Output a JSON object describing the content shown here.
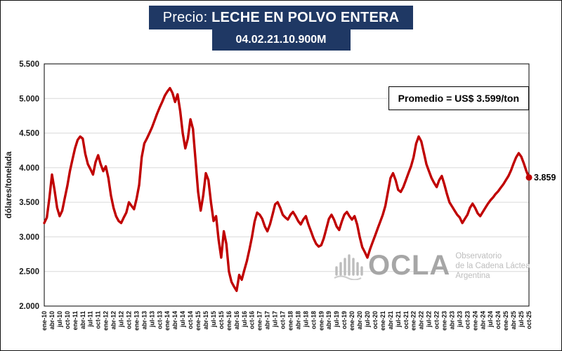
{
  "header": {
    "title_prefix": "Precio: ",
    "title_main": "LECHE EN POLVO ENTERA",
    "subtitle": "04.02.21.10.900M",
    "bg_color": "#1F3864"
  },
  "annotation": {
    "text": "Promedio = US$ 3.599/ton"
  },
  "end_label": "3.859",
  "watermark": {
    "brand": "OCLA",
    "lines": [
      "Observatorio",
      "de la Cadena Láctea",
      "Argentina"
    ]
  },
  "chart_data": {
    "type": "line",
    "title": "Precio: LECHE EN POLVO ENTERA",
    "subtitle": "04.02.21.10.900M",
    "ylabel": "dólares/tonelada",
    "ylim": [
      2000,
      5500
    ],
    "grid": "horizontal",
    "frequency": "monthly",
    "x_start": "ene-10",
    "x_end": "oct-25",
    "line_color": "#C00000",
    "average_value": 3599,
    "last_value": 3859,
    "y_ticks": [
      {
        "v": 2000,
        "label": "2.000"
      },
      {
        "v": 2500,
        "label": "2.500"
      },
      {
        "v": 3000,
        "label": "3.000"
      },
      {
        "v": 3500,
        "label": "3.500"
      },
      {
        "v": 4000,
        "label": "4.000"
      },
      {
        "v": 4500,
        "label": "4.500"
      },
      {
        "v": 5000,
        "label": "5.000"
      },
      {
        "v": 5500,
        "label": "5.500"
      }
    ],
    "x_tick_step": 3,
    "x_tick_labels": [
      "ene-10",
      "abr-10",
      "jul-10",
      "oct-10",
      "ene-11",
      "abr-11",
      "jul-11",
      "oct-11",
      "ene-12",
      "abr-12",
      "jul-12",
      "oct-12",
      "ene-13",
      "abr-13",
      "jul-13",
      "oct-13",
      "ene-14",
      "abr-14",
      "jul-14",
      "oct-14",
      "ene-15",
      "abr-15",
      "jul-15",
      "oct-15",
      "ene-16",
      "abr-16",
      "jul-16",
      "oct-16",
      "ene-17",
      "abr-17",
      "jul-17",
      "oct-17",
      "ene-18",
      "abr-18",
      "jul-18",
      "oct-18",
      "ene-19",
      "abr-19",
      "jul-19",
      "oct-19",
      "ene-20",
      "abr-20",
      "jul-20",
      "oct-20",
      "ene-21",
      "abr-21",
      "jul-21",
      "oct-21",
      "ene-22",
      "abr-22",
      "jul-22",
      "oct-22",
      "ene-23",
      "abr-23",
      "jul-23",
      "oct-23",
      "ene-24",
      "abr-24",
      "jul-24",
      "oct-24",
      "ene-25",
      "abr-25",
      "jul-25",
      "oct-25"
    ],
    "values": [
      3200,
      3280,
      3560,
      3900,
      3680,
      3420,
      3300,
      3380,
      3560,
      3740,
      3950,
      4120,
      4280,
      4400,
      4450,
      4420,
      4200,
      4050,
      3980,
      3900,
      4080,
      4180,
      4050,
      3950,
      4020,
      3850,
      3600,
      3420,
      3300,
      3230,
      3200,
      3280,
      3350,
      3500,
      3450,
      3400,
      3550,
      3750,
      4150,
      4350,
      4420,
      4500,
      4580,
      4680,
      4780,
      4870,
      4950,
      5040,
      5100,
      5150,
      5080,
      4950,
      5060,
      4820,
      4500,
      4280,
      4420,
      4700,
      4560,
      4100,
      3650,
      3380,
      3600,
      3920,
      3820,
      3500,
      3230,
      3300,
      2950,
      2700,
      3080,
      2900,
      2500,
      2350,
      2280,
      2220,
      2450,
      2380,
      2520,
      2650,
      2820,
      3000,
      3220,
      3350,
      3320,
      3260,
      3150,
      3080,
      3180,
      3320,
      3470,
      3500,
      3420,
      3320,
      3280,
      3250,
      3320,
      3360,
      3300,
      3230,
      3180,
      3250,
      3300,
      3180,
      3080,
      2980,
      2900,
      2860,
      2880,
      2980,
      3120,
      3260,
      3320,
      3250,
      3150,
      3100,
      3220,
      3320,
      3360,
      3300,
      3250,
      3300,
      3180,
      3000,
      2850,
      2780,
      2700,
      2820,
      2920,
      3020,
      3120,
      3220,
      3320,
      3450,
      3650,
      3850,
      3920,
      3820,
      3680,
      3650,
      3720,
      3820,
      3920,
      4020,
      4150,
      4350,
      4450,
      4380,
      4220,
      4050,
      3950,
      3850,
      3780,
      3720,
      3820,
      3880,
      3760,
      3620,
      3500,
      3440,
      3380,
      3320,
      3280,
      3200,
      3260,
      3320,
      3420,
      3480,
      3420,
      3340,
      3300,
      3360,
      3420,
      3480,
      3530,
      3570,
      3620,
      3660,
      3710,
      3760,
      3820,
      3880,
      3960,
      4060,
      4150,
      4210,
      4160,
      4060,
      3950,
      3859
    ]
  }
}
